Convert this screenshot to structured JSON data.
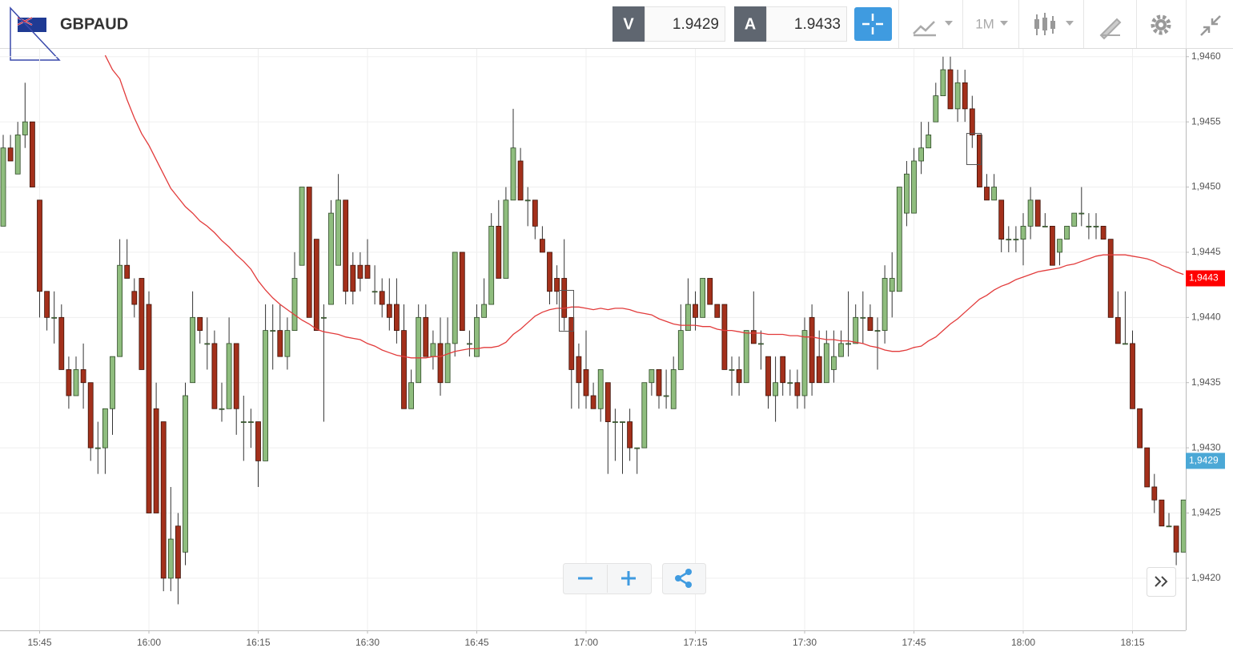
{
  "header": {
    "symbol": "GBPAUD",
    "sell_label": "V",
    "sell_price": 1.9429,
    "buy_label": "A",
    "buy_price": 1.9433,
    "timeframe": "1M"
  },
  "chart_data": {
    "type": "candlestick",
    "categories": [
      null,
      null,
      null,
      null,
      null,
      "15:45",
      null,
      null,
      null,
      null,
      null,
      null,
      null,
      null,
      null,
      null,
      null,
      null,
      null,
      null,
      "16:00",
      null,
      null,
      null,
      null,
      null,
      null,
      null,
      null,
      null,
      null,
      null,
      null,
      null,
      null,
      "16:15",
      null,
      null,
      null,
      null,
      null,
      null,
      null,
      null,
      null,
      null,
      null,
      null,
      null,
      null,
      "16:30",
      null,
      null,
      null,
      null,
      null,
      null,
      null,
      null,
      null,
      null,
      null,
      null,
      null,
      null,
      "16:45",
      null,
      null,
      null,
      null,
      null,
      null,
      null,
      null,
      null,
      null,
      null,
      null,
      null,
      null,
      "17:00",
      null,
      null,
      null,
      null,
      null,
      null,
      null,
      null,
      null,
      null,
      null,
      null,
      null,
      null,
      "17:15",
      null,
      null,
      null,
      null,
      null,
      null,
      null,
      null,
      null,
      null,
      null,
      null,
      null,
      null,
      "17:30",
      null,
      null,
      null,
      null,
      null,
      null,
      null,
      null,
      null,
      null,
      null,
      null,
      null,
      null,
      "17:45",
      null,
      null,
      null,
      null,
      null,
      null,
      null,
      null,
      null,
      null,
      null,
      null,
      null,
      null,
      "18:00",
      null,
      null,
      null,
      null,
      null,
      null,
      null,
      null,
      null,
      null,
      null,
      null,
      null,
      null,
      "18:15",
      null,
      null,
      null,
      null,
      null,
      null,
      null
    ],
    "open": [
      1.9447,
      1.9453,
      1.9451,
      1.9454,
      1.9455,
      1.9449,
      1.9442,
      1.944,
      1.944,
      1.9436,
      1.9434,
      1.9436,
      1.9435,
      1.943,
      1.943,
      1.9433,
      1.9437,
      1.9444,
      1.9442,
      1.9443,
      1.9441,
      1.9433,
      1.9432,
      1.942,
      1.9424,
      1.9422,
      1.9435,
      1.944,
      1.9438,
      1.9438,
      1.9433,
      1.9433,
      1.9438,
      1.9432,
      1.9432,
      1.9432,
      1.9429,
      1.9439,
      1.9439,
      1.9437,
      1.9439,
      1.9444,
      1.945,
      1.9446,
      1.944,
      1.9441,
      1.9444,
      1.9449,
      1.9444,
      1.9444,
      1.9444,
      1.9442,
      1.9442,
      1.9441,
      1.9441,
      1.9439,
      1.9433,
      1.9435,
      1.944,
      1.9437,
      1.9438,
      1.9435,
      1.9438,
      1.9445,
      1.9438,
      1.9437,
      1.944,
      1.9441,
      1.9447,
      1.9443,
      1.9449,
      1.9452,
      1.9449,
      1.9449,
      1.9446,
      1.9445,
      1.9443,
      1.9443,
      1.944,
      1.9437,
      1.9436,
      1.9434,
      1.9433,
      1.9435,
      1.9432,
      1.9432,
      1.9432,
      1.943,
      1.943,
      1.9435,
      1.9436,
      1.9434,
      1.9433,
      1.9436,
      1.9439,
      1.9441,
      1.944,
      1.9443,
      1.9441,
      1.9441,
      1.9436,
      1.9436,
      1.9435,
      1.9439,
      1.9438,
      1.9437,
      1.9434,
      1.9437,
      1.9435,
      1.9435,
      1.9434,
      1.944,
      1.9437,
      1.9435,
      1.9436,
      1.9437,
      1.9438,
      1.9438,
      1.944,
      1.944,
      1.9439,
      1.9439,
      1.9442,
      1.9442,
      1.9448,
      1.9448,
      1.9452,
      1.9453,
      1.9455,
      1.9457,
      1.9459,
      1.9456,
      1.9458,
      1.9456,
      1.9454,
      1.945,
      1.9449,
      1.9449,
      1.9446,
      1.9446,
      1.9446,
      1.9447,
      1.9449,
      1.9447,
      1.9447,
      1.9445,
      1.9446,
      1.9447,
      1.9448,
      1.9447,
      1.9447,
      1.9447,
      1.9446,
      1.944,
      1.9438,
      1.9438,
      1.9433,
      1.943,
      1.9427,
      1.9426,
      1.9424,
      1.9424,
      1.9422
    ],
    "high": [
      1.9454,
      1.9454,
      1.9455,
      1.9458,
      1.9455,
      1.9449,
      1.9442,
      1.9442,
      1.9441,
      1.9437,
      1.9437,
      1.9438,
      1.9435,
      1.9432,
      1.9433,
      1.9437,
      1.9446,
      1.9446,
      1.9443,
      1.9443,
      1.9442,
      1.9435,
      1.9432,
      1.9427,
      1.9425,
      1.9435,
      1.9442,
      1.944,
      1.944,
      1.9439,
      1.9435,
      1.944,
      1.9438,
      1.9434,
      1.9433,
      1.9432,
      1.9441,
      1.9441,
      1.9441,
      1.944,
      1.9445,
      1.945,
      1.945,
      1.9446,
      1.9441,
      1.9449,
      1.9451,
      1.9449,
      1.9445,
      1.9445,
      1.9446,
      1.9444,
      1.9443,
      1.9443,
      1.9443,
      1.9441,
      1.9436,
      1.9441,
      1.9441,
      1.9439,
      1.944,
      1.944,
      1.9445,
      1.9445,
      1.9439,
      1.9441,
      1.9443,
      1.9448,
      1.9449,
      1.945,
      1.9456,
      1.9453,
      1.945,
      1.9449,
      1.9447,
      1.9445,
      1.9444,
      1.9446,
      1.944,
      1.9438,
      1.9439,
      1.9435,
      1.9436,
      1.9435,
      1.9433,
      1.9432,
      1.9433,
      1.943,
      1.9435,
      1.9436,
      1.9436,
      1.9436,
      1.9437,
      1.9441,
      1.9443,
      1.9442,
      1.9443,
      1.9443,
      1.9441,
      1.9441,
      1.9437,
      1.9437,
      1.9439,
      1.9442,
      1.9439,
      1.9437,
      1.9437,
      1.9437,
      1.9436,
      1.9436,
      1.944,
      1.9441,
      1.9439,
      1.9439,
      1.9439,
      1.9439,
      1.9442,
      1.9441,
      1.9442,
      1.9441,
      1.944,
      1.9444,
      1.9445,
      1.945,
      1.9452,
      1.9453,
      1.9455,
      1.9455,
      1.9458,
      1.946,
      1.946,
      1.9459,
      1.9459,
      1.9457,
      1.9454,
      1.9451,
      1.9451,
      1.9449,
      1.9447,
      1.9447,
      1.9448,
      1.945,
      1.9449,
      1.9448,
      1.9447,
      1.9446,
      1.9447,
      1.9448,
      1.945,
      1.9448,
      1.9448,
      1.9447,
      1.9446,
      1.9442,
      1.9442,
      1.9439,
      1.9433,
      1.943,
      1.9428,
      1.9426,
      1.9425,
      1.9424,
      1.9426
    ],
    "low": [
      1.9447,
      1.9452,
      1.9451,
      1.9453,
      1.945,
      1.944,
      1.9439,
      1.9438,
      1.9436,
      1.9433,
      1.9434,
      1.9433,
      1.9429,
      1.9428,
      1.9428,
      1.9431,
      1.9437,
      1.9443,
      1.944,
      1.9436,
      1.9425,
      1.9425,
      1.9419,
      1.9419,
      1.9418,
      1.9421,
      1.9435,
      1.9438,
      1.9436,
      1.9433,
      1.9432,
      1.9433,
      1.9431,
      1.9429,
      1.943,
      1.9427,
      1.9429,
      1.9436,
      1.9437,
      1.9436,
      1.9439,
      1.9444,
      1.944,
      1.9439,
      1.9432,
      1.9441,
      1.9444,
      1.9441,
      1.9441,
      1.9442,
      1.9443,
      1.9441,
      1.944,
      1.9439,
      1.9438,
      1.9433,
      1.9433,
      1.9435,
      1.9437,
      1.9436,
      1.9434,
      1.9435,
      1.9437,
      1.9439,
      1.9437,
      1.9437,
      1.944,
      1.9441,
      1.9443,
      1.9443,
      1.9449,
      1.9449,
      1.9447,
      1.9446,
      1.9445,
      1.9441,
      1.9441,
      1.9439,
      1.9433,
      1.9433,
      1.9433,
      1.9433,
      1.9432,
      1.9428,
      1.9429,
      1.9428,
      1.9429,
      1.9428,
      1.943,
      1.9434,
      1.9433,
      1.9433,
      1.9433,
      1.9436,
      1.9439,
      1.9439,
      1.944,
      1.9441,
      1.944,
      1.9436,
      1.9434,
      1.9434,
      1.9435,
      1.9438,
      1.9436,
      1.9433,
      1.9432,
      1.9434,
      1.9434,
      1.9433,
      1.9433,
      1.9434,
      1.9435,
      1.9435,
      1.9435,
      1.9437,
      1.9437,
      1.9438,
      1.9438,
      1.9439,
      1.9436,
      1.9438,
      1.944,
      1.9442,
      1.9447,
      1.9448,
      1.9451,
      1.9453,
      1.9455,
      1.9457,
      1.9456,
      1.9455,
      1.9455,
      1.9453,
      1.945,
      1.9449,
      1.9449,
      1.9445,
      1.9445,
      1.9445,
      1.9444,
      1.9446,
      1.9447,
      1.9447,
      1.9444,
      1.9444,
      1.9446,
      1.9447,
      1.9447,
      1.9446,
      1.9446,
      1.9446,
      1.944,
      1.9438,
      1.9438,
      1.9433,
      1.943,
      1.9427,
      1.9425,
      1.9424,
      1.9424,
      1.9421,
      1.9422
    ],
    "close": [
      1.9453,
      1.9452,
      1.9454,
      1.9455,
      1.945,
      1.9442,
      1.944,
      1.944,
      1.9436,
      1.9434,
      1.9436,
      1.9435,
      1.943,
      1.943,
      1.9433,
      1.9437,
      1.9444,
      1.9443,
      1.9441,
      1.9436,
      1.9425,
      1.9425,
      1.942,
      1.9423,
      1.942,
      1.9434,
      1.944,
      1.9439,
      1.9438,
      1.9433,
      1.9433,
      1.9438,
      1.9433,
      1.9432,
      1.9432,
      1.9429,
      1.9439,
      1.9439,
      1.9437,
      1.9439,
      1.9443,
      1.945,
      1.944,
      1.9439,
      1.944,
      1.9448,
      1.9449,
      1.9442,
      1.9442,
      1.9443,
      1.9443,
      1.9442,
      1.9441,
      1.944,
      1.9439,
      1.9433,
      1.9435,
      1.944,
      1.9437,
      1.9438,
      1.9435,
      1.9438,
      1.9445,
      1.9439,
      1.9438,
      1.944,
      1.9441,
      1.9447,
      1.9443,
      1.9449,
      1.9453,
      1.9449,
      1.9449,
      1.9447,
      1.9445,
      1.9442,
      1.9442,
      1.944,
      1.9436,
      1.9435,
      1.9434,
      1.9433,
      1.9436,
      1.9432,
      1.9432,
      1.9432,
      1.943,
      1.943,
      1.9435,
      1.9436,
      1.9434,
      1.9434,
      1.9436,
      1.9439,
      1.9441,
      1.944,
      1.9443,
      1.9441,
      1.944,
      1.9436,
      1.9436,
      1.9435,
      1.9439,
      1.9438,
      1.9438,
      1.9434,
      1.9435,
      1.9435,
      1.9435,
      1.9434,
      1.9439,
      1.9435,
      1.9435,
      1.9438,
      1.9437,
      1.9438,
      1.9438,
      1.944,
      1.944,
      1.9439,
      1.9439,
      1.9443,
      1.9443,
      1.945,
      1.9451,
      1.9452,
      1.9453,
      1.9454,
      1.9457,
      1.9459,
      1.9456,
      1.9458,
      1.9456,
      1.9454,
      1.945,
      1.9449,
      1.945,
      1.9446,
      1.9446,
      1.9446,
      1.9447,
      1.9449,
      1.9447,
      1.9447,
      1.9444,
      1.9446,
      1.9447,
      1.9448,
      1.9448,
      1.9447,
      1.9447,
      1.9446,
      1.944,
      1.9438,
      1.9438,
      1.9433,
      1.943,
      1.9427,
      1.9426,
      1.9424,
      1.9424,
      1.9422,
      1.9426
    ],
    "up_color": "#8fbd7e",
    "down_color": "#a3301b",
    "overlay": {
      "color": "#e23b3b",
      "values": [
        null,
        null,
        null,
        null,
        null,
        null,
        null,
        null,
        null,
        null,
        null,
        null,
        null,
        null,
        1.94601,
        1.9459,
        1.94583,
        1.94567,
        1.94553,
        1.94541,
        1.94532,
        1.94521,
        1.9451,
        1.94499,
        1.94492,
        1.94485,
        1.9448,
        1.94474,
        1.9447,
        1.94465,
        1.94459,
        1.94454,
        1.94448,
        1.94443,
        1.94437,
        1.94428,
        1.94421,
        1.94415,
        1.9441,
        1.94406,
        1.94402,
        1.94398,
        1.94395,
        1.94391,
        1.94389,
        1.94388,
        1.94387,
        1.94385,
        1.94384,
        1.94383,
        1.9438,
        1.94378,
        1.94375,
        1.94373,
        1.94371,
        1.9437,
        1.94369,
        1.94369,
        1.94369,
        1.9437,
        1.9437,
        1.94372,
        1.94374,
        1.94375,
        1.94376,
        1.94376,
        1.94377,
        1.94377,
        1.94378,
        1.94381,
        1.94387,
        1.94391,
        1.94396,
        1.94401,
        1.94404,
        1.94406,
        1.94407,
        1.94407,
        1.94408,
        1.94408,
        1.94407,
        1.94406,
        1.94407,
        1.94406,
        1.94407,
        1.94407,
        1.94406,
        1.94404,
        1.94403,
        1.94402,
        1.94399,
        1.94397,
        1.94395,
        1.94394,
        1.94394,
        1.94394,
        1.94393,
        1.94393,
        1.94391,
        1.9439,
        1.9439,
        1.94389,
        1.94388,
        1.94388,
        1.94388,
        1.94387,
        1.94387,
        1.94387,
        1.94386,
        1.94386,
        1.94385,
        1.94385,
        1.94384,
        1.94383,
        1.94383,
        1.94382,
        1.94382,
        1.94381,
        1.9438,
        1.94378,
        1.94377,
        1.94375,
        1.94374,
        1.94374,
        1.94375,
        1.94377,
        1.94378,
        1.94382,
        1.94385,
        1.9439,
        1.94395,
        1.94399,
        1.94404,
        1.94409,
        1.94414,
        1.94417,
        1.94421,
        1.94424,
        1.94426,
        1.94429,
        1.94431,
        1.94433,
        1.94435,
        1.94436,
        1.94437,
        1.94438,
        1.9444,
        1.94441,
        1.94443,
        1.94445,
        1.94447,
        1.94448,
        1.94448,
        1.94448,
        1.94448,
        1.94447,
        1.94446,
        1.94445,
        1.94443,
        1.9444,
        1.94438,
        1.94435,
        1.94433
      ]
    },
    "ylim": [
      1.9416,
      1.94606
    ],
    "yticks": [
      {
        "value": 1.942,
        "label": "1,9420"
      },
      {
        "value": 1.9425,
        "label": "1,9425"
      },
      {
        "value": 1.943,
        "label": "1,9430"
      },
      {
        "value": 1.9435,
        "label": "1,9435"
      },
      {
        "value": 1.944,
        "label": "1,9440"
      },
      {
        "value": 1.9445,
        "label": "1,9445"
      },
      {
        "value": 1.945,
        "label": "1,9450"
      },
      {
        "value": 1.9455,
        "label": "1,9455"
      },
      {
        "value": 1.946,
        "label": "1,9460"
      }
    ],
    "price_labels": [
      {
        "value": 1.9443,
        "label": "1,9443",
        "color": "#ff0000"
      },
      {
        "value": 1.9429,
        "label": "1,9429",
        "color": "#4ba8d6"
      }
    ],
    "grid": true
  }
}
